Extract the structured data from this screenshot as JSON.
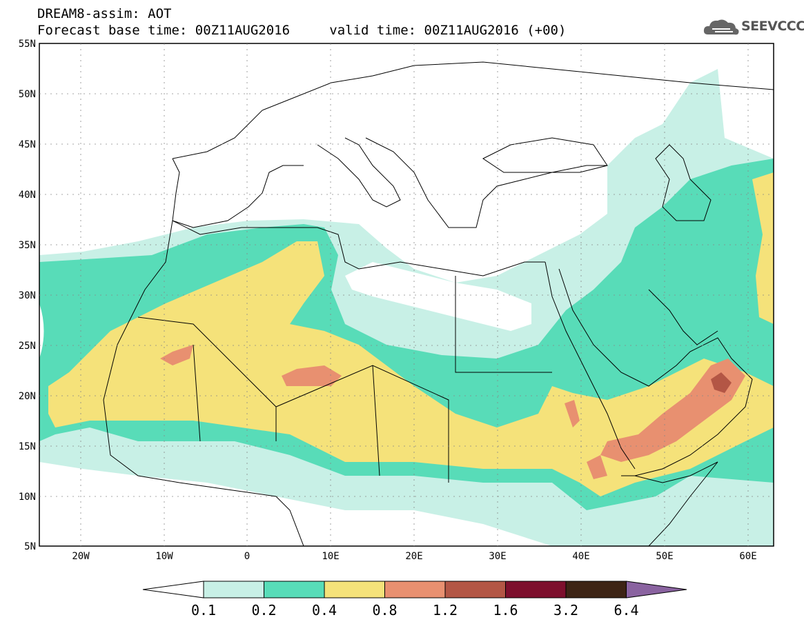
{
  "title": {
    "line1": "DREAM8-assim: AOT",
    "base": "Forecast base time: 00Z11AUG2016",
    "valid": "valid time: 00Z11AUG2016 (+00)"
  },
  "logo": {
    "text": "SEEVCCC",
    "icon": "cloud-icon"
  },
  "lat_ticks": [
    "55N",
    "50N",
    "45N",
    "40N",
    "35N",
    "30N",
    "25N",
    "20N",
    "15N",
    "10N",
    "5N"
  ],
  "lon_ticks": [
    "20W",
    "10W",
    "0",
    "10E",
    "20E",
    "30E",
    "40E",
    "50E",
    "60E"
  ],
  "colorbar": {
    "labels": [
      "0.1",
      "0.2",
      "0.4",
      "0.8",
      "1.2",
      "1.6",
      "3.2",
      "6.4"
    ],
    "colors": [
      "#ffffff",
      "#c8f0e6",
      "#58dcb8",
      "#f5e27a",
      "#e89070",
      "#b35645",
      "#7d0f2d",
      "#3d2415",
      "#8a63a0"
    ]
  },
  "colors": {
    "c1": "#c8f0e6",
    "c2": "#58dcb8",
    "c3": "#f5e27a",
    "c4": "#e89070",
    "c5": "#b35645"
  }
}
